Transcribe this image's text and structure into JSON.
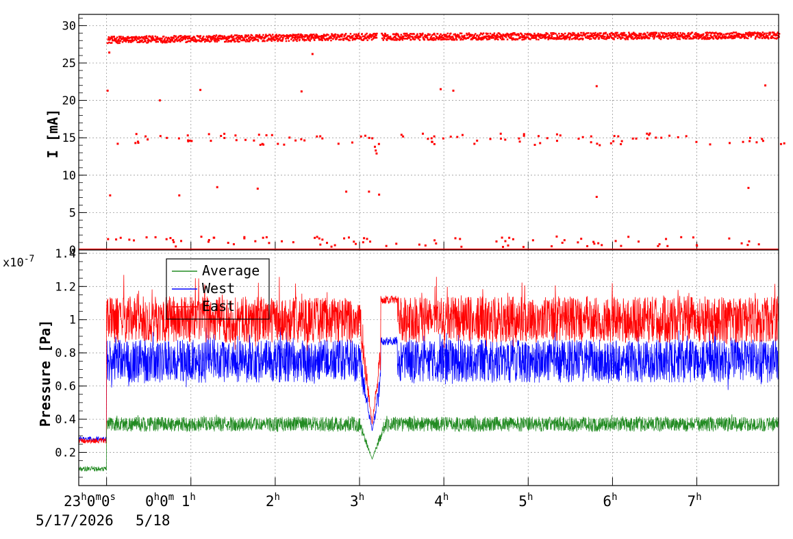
{
  "chart_data": [
    {
      "type": "scatter",
      "ylabel": "I [mA]",
      "ylim": [
        0,
        31.5
      ],
      "yticks": [
        0,
        5,
        10,
        15,
        20,
        25,
        30
      ],
      "grid": true,
      "x_unit": "hours since 23:00 on 5/17/2026",
      "xlim": [
        -0.33,
        7.97
      ],
      "series": [
        {
          "color": "#ff0000",
          "main_band": {
            "from": 0.0,
            "to": 7.97,
            "level_start": 28.2,
            "level_mid": 28.6,
            "level_end": 28.8,
            "gap": [
              3.2,
              3.25
            ]
          },
          "zero_band": {
            "from": 0.0,
            "to": 7.97,
            "level": 0.0
          },
          "outliers": [
            [
              0.0,
              21.3
            ],
            [
              0.02,
              26.4
            ],
            [
              0.03,
              7.3
            ],
            [
              0.62,
              20.0
            ],
            [
              0.33,
              14.3
            ],
            [
              0.12,
              14.2
            ],
            [
              1.1,
              21.4
            ],
            [
              2.3,
              21.2
            ],
            [
              2.43,
              26.2
            ],
            [
              3.95,
              21.5
            ],
            [
              4.1,
              21.3
            ],
            [
              5.8,
              21.9
            ],
            [
              7.8,
              22.0
            ],
            [
              0.85,
              7.3
            ],
            [
              1.3,
              8.4
            ],
            [
              1.78,
              8.2
            ],
            [
              2.83,
              7.8
            ],
            [
              3.1,
              7.8
            ],
            [
              3.22,
              7.4
            ],
            [
              5.8,
              7.1
            ],
            [
              7.6,
              8.3
            ],
            [
              3.17,
              13.8
            ],
            [
              3.18,
              13.3
            ],
            [
              3.19,
              12.9
            ]
          ],
          "cluster_near_15": {
            "count": 110,
            "ymin": 14.0,
            "ymax": 15.6
          },
          "cluster_near_1": {
            "count": 90,
            "ymin": 0.4,
            "ymax": 1.8
          }
        }
      ]
    },
    {
      "type": "line",
      "ylabel": "Pressure [Pa]",
      "y_multiplier": "x10",
      "y_exponent": "-7",
      "ylim": [
        0.0,
        1.42
      ],
      "yticks": [
        0.2,
        0.4,
        0.6,
        0.8,
        1,
        1.2,
        1.4
      ],
      "tick_labels_y": [
        "0.2",
        "0.4",
        "0.6",
        "0.8",
        "1",
        "1.2",
        "1.4"
      ],
      "grid": true,
      "legend": "top-left",
      "x_unit": "hours since 23:00 on 5/17/2026",
      "xlim": [
        -0.33,
        7.97
      ],
      "series": [
        {
          "name": "Average",
          "color": "#228b22",
          "pre_level": 0.1,
          "level": 0.37,
          "noise": 0.045,
          "dip": {
            "at": 3.15,
            "value": 0.16
          }
        },
        {
          "name": "West",
          "color": "#0000ff",
          "pre_level": 0.28,
          "level": 0.75,
          "noise": 0.13,
          "dip": {
            "at": 3.15,
            "value": 0.33
          }
        },
        {
          "name": "East",
          "color": "#ff0000",
          "pre_level": 0.27,
          "level": 1.0,
          "noise": 0.14,
          "dip": {
            "at": 3.15,
            "value": 0.37
          }
        }
      ]
    }
  ],
  "x_axis": {
    "ticks": [
      {
        "h": 0,
        "label": "0",
        "sup": "h"
      },
      {
        "h": 1,
        "label": "1",
        "sup": "h"
      },
      {
        "h": 2,
        "label": "2",
        "sup": "h"
      },
      {
        "h": 3,
        "label": "3",
        "sup": "h"
      },
      {
        "h": 4,
        "label": "4",
        "sup": "h"
      },
      {
        "h": 5,
        "label": "5",
        "sup": "h"
      },
      {
        "h": 6,
        "label": "6",
        "sup": "h"
      },
      {
        "h": 7,
        "label": "7",
        "sup": "h"
      }
    ],
    "start_label": {
      "hours": "23",
      "minutes": "0",
      "seconds": "0"
    },
    "midnight_label": {
      "hours": "0",
      "minutes": "0"
    },
    "date_start": "5/17/2026",
    "date_next": "5/18"
  }
}
